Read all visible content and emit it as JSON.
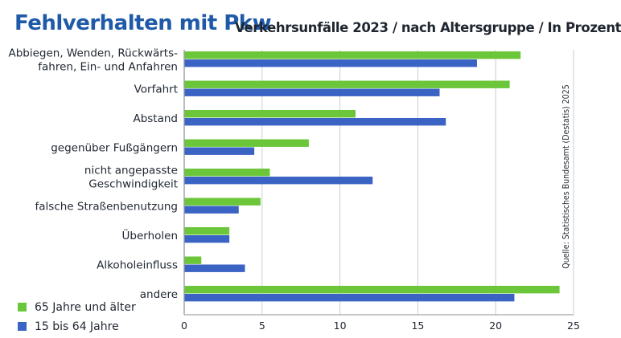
{
  "header": {
    "title": "Fehlverhalten mit Pkw",
    "subtitle": "Verkehrsunfälle 2023 / nach Altersgruppe / In Prozent"
  },
  "source": "Quelle: Statistisches Bundesamt (Destatis) 2025",
  "colors": {
    "series_older": "#6cc63a",
    "series_younger": "#3a63c4",
    "grid": "#c9ced3",
    "axis": "#8a8f94",
    "text": "#1f2630",
    "title": "#1f5aa8"
  },
  "chart_data": {
    "type": "bar",
    "orientation": "horizontal",
    "title": "Fehlverhalten mit Pkw",
    "subtitle": "Verkehrsunfälle 2023 / nach Altersgruppe / In Prozent",
    "categories": [
      [
        "Abbiegen, Wenden, Rückwärts-",
        "fahren, Ein- und Anfahren"
      ],
      [
        "Vorfahrt"
      ],
      [
        "Abstand"
      ],
      [
        "gegenüber Fußgängern"
      ],
      [
        "nicht angepasste",
        "Geschwindigkeit"
      ],
      [
        "falsche Straßenbenutzung"
      ],
      [
        "Überholen"
      ],
      [
        "Alkoholeinfluss"
      ],
      [
        "andere"
      ]
    ],
    "series": [
      {
        "name": "65 Jahre und älter",
        "values": [
          21.6,
          20.9,
          11.0,
          8.0,
          5.5,
          4.9,
          2.9,
          1.1,
          24.1
        ]
      },
      {
        "name": "15 bis 64 Jahre",
        "values": [
          18.8,
          16.4,
          16.8,
          4.5,
          12.1,
          3.5,
          2.9,
          3.9,
          21.2
        ]
      }
    ],
    "xlim": [
      0,
      25
    ],
    "xticks": [
      0,
      5,
      10,
      15,
      20,
      25
    ],
    "xlabel": "",
    "ylabel": "",
    "grid": true,
    "legend": "bottom-left"
  }
}
